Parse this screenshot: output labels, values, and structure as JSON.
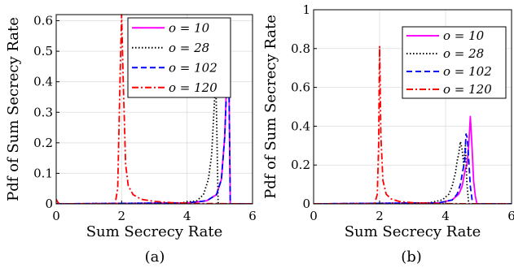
{
  "chart_data": [
    {
      "type": "line",
      "panel": "(a)",
      "xlabel": "Sum Secrecy Rate",
      "ylabel": "Pdf of Sum Secrecy Rate",
      "xlim": [
        0,
        6
      ],
      "ylim": [
        0,
        0.62
      ],
      "xticks": [
        0,
        2,
        4,
        6
      ],
      "yticks": [
        0,
        0.1,
        0.2,
        0.3,
        0.4,
        0.5,
        0.6
      ],
      "grid": true,
      "legend": "top-right",
      "series": [
        {
          "name": "o = 10",
          "color": "#ff00ff",
          "dash": "solid",
          "x": [
            0,
            4.0,
            4.6,
            4.9,
            5.05,
            5.15,
            5.22,
            5.27,
            5.32,
            5.6,
            6
          ],
          "y": [
            0,
            0.003,
            0.01,
            0.03,
            0.08,
            0.22,
            0.44,
            0.51,
            0.0,
            0.0,
            0
          ]
        },
        {
          "name": "o = 28",
          "color": "#000000",
          "dash": "dotted",
          "x": [
            0,
            3.8,
            4.3,
            4.5,
            4.65,
            4.75,
            4.82,
            4.87,
            4.9,
            4.95,
            5.5,
            6
          ],
          "y": [
            0,
            0.003,
            0.01,
            0.03,
            0.08,
            0.16,
            0.3,
            0.41,
            0.3,
            0.0,
            0.0,
            0
          ]
        },
        {
          "name": "o = 102",
          "color": "#0000ff",
          "dash": "dashed",
          "x": [
            0,
            4.0,
            4.6,
            4.9,
            5.05,
            5.15,
            5.22,
            5.27,
            5.32,
            5.6,
            6
          ],
          "y": [
            0,
            0.003,
            0.01,
            0.03,
            0.08,
            0.22,
            0.42,
            0.48,
            0.0,
            0.0,
            0
          ]
        },
        {
          "name": "o = 120",
          "color": "#ff0000",
          "dash": "dashdot",
          "x": [
            0,
            0.05,
            0.1,
            1.8,
            1.88,
            1.95,
            2.0,
            2.05,
            2.12,
            2.2,
            2.35,
            2.6,
            3.0,
            3.5,
            4.0,
            4.5,
            6
          ],
          "y": [
            0.015,
            0.005,
            0,
            0,
            0.05,
            0.4,
            0.62,
            0.4,
            0.13,
            0.06,
            0.03,
            0.015,
            0.008,
            0.004,
            0.002,
            0.001,
            0
          ]
        }
      ]
    },
    {
      "type": "line",
      "panel": "(b)",
      "xlabel": "Sum Secrecy Rate",
      "ylabel": "Pdf of Sum Secrecy Rate",
      "xlim": [
        0,
        6
      ],
      "ylim": [
        0,
        1
      ],
      "xticks": [
        0,
        2,
        4,
        6
      ],
      "yticks": [
        0,
        0.2,
        0.4,
        0.6,
        0.8,
        1
      ],
      "grid": true,
      "legend": "top-right",
      "series": [
        {
          "name": "o = 10",
          "color": "#ff00ff",
          "dash": "solid",
          "x": [
            0,
            3.8,
            4.2,
            4.4,
            4.5,
            4.6,
            4.65,
            4.7,
            4.75,
            4.8,
            4.85,
            4.9,
            4.95,
            5.2,
            6
          ],
          "y": [
            0,
            0.005,
            0.02,
            0.05,
            0.09,
            0.18,
            0.2,
            0.3,
            0.45,
            0.3,
            0.12,
            0.04,
            0.0,
            0.0,
            0
          ]
        },
        {
          "name": "o = 28",
          "color": "#000000",
          "dash": "dotted",
          "x": [
            0,
            3.5,
            3.9,
            4.1,
            4.2,
            4.3,
            4.35,
            4.4,
            4.45,
            4.5,
            4.55,
            4.6,
            4.65,
            4.7,
            5.2,
            6
          ],
          "y": [
            0,
            0.005,
            0.02,
            0.05,
            0.09,
            0.16,
            0.22,
            0.26,
            0.32,
            0.28,
            0.2,
            0.3,
            0.1,
            0.0,
            0.0,
            0
          ]
        },
        {
          "name": "o = 102",
          "color": "#0000ff",
          "dash": "dashed",
          "x": [
            0,
            3.8,
            4.2,
            4.35,
            4.45,
            4.52,
            4.58,
            4.62,
            4.66,
            4.7,
            4.75,
            4.82,
            5.2,
            6
          ],
          "y": [
            0,
            0.005,
            0.02,
            0.05,
            0.1,
            0.17,
            0.22,
            0.36,
            0.34,
            0.23,
            0.09,
            0.0,
            0.0,
            0
          ]
        },
        {
          "name": "o = 120",
          "color": "#ff0000",
          "dash": "dashdot",
          "x": [
            0,
            1.85,
            1.93,
            1.97,
            2.0,
            2.04,
            2.1,
            2.2,
            2.35,
            2.6,
            3.0,
            3.5,
            4.0,
            6
          ],
          "y": [
            0,
            0,
            0.05,
            0.3,
            0.81,
            0.35,
            0.12,
            0.05,
            0.025,
            0.012,
            0.006,
            0.003,
            0.001,
            0
          ]
        }
      ]
    }
  ],
  "captions": [
    "(a)",
    "(b)"
  ]
}
